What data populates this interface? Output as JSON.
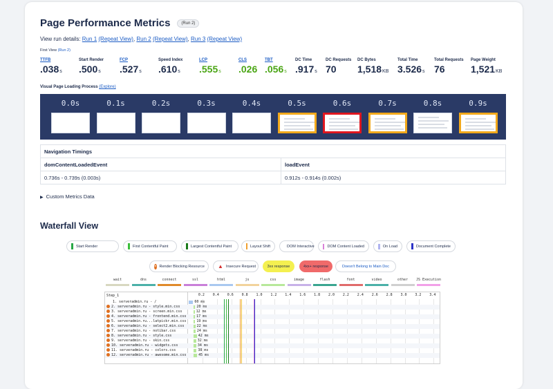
{
  "header": {
    "title": "Page Performance Metrics",
    "run_pill": "(Run 2)",
    "view_run_label": "View run details:",
    "runs": [
      {
        "label": "Run 1",
        "repeat": "(Repeat View)"
      },
      {
        "label": "Run 2",
        "repeat": "(Repeat View)"
      },
      {
        "label": "Run 3",
        "repeat": "(Repeat View)"
      }
    ],
    "first_view": "First View",
    "first_view_run": "(Run 2)"
  },
  "metrics": [
    {
      "label": "TTFB",
      "value": ".038",
      "unit": "s",
      "link": true,
      "green": false
    },
    {
      "label": "Start Render",
      "value": ".500",
      "unit": "s",
      "link": false,
      "green": false
    },
    {
      "label": "FCP",
      "value": ".527",
      "unit": "s",
      "link": true,
      "green": false
    },
    {
      "label": "Speed Index",
      "value": ".610",
      "unit": "s",
      "link": false,
      "green": false
    },
    {
      "label": "LCP",
      "value": ".555",
      "unit": "s",
      "link": true,
      "green": true
    },
    {
      "label": "CLS",
      "value": ".026",
      "unit": "",
      "link": true,
      "green": true
    },
    {
      "label": "TBT",
      "value": ".056",
      "unit": "s",
      "link": true,
      "green": true
    },
    {
      "label": "DC Time",
      "value": ".917",
      "unit": "s",
      "link": false,
      "green": false
    },
    {
      "label": "DC Requests",
      "value": "70",
      "unit": "",
      "link": false,
      "green": false
    },
    {
      "label": "DC Bytes",
      "value": "1,518",
      "unit": "KB",
      "link": false,
      "green": false
    },
    {
      "label": "Total Time",
      "value": "3.526",
      "unit": "s",
      "link": false,
      "green": false
    },
    {
      "label": "Total Requests",
      "value": "76",
      "unit": "",
      "link": false,
      "green": false
    },
    {
      "label": "Page Weight",
      "value": "1,521",
      "unit": "KB",
      "link": false,
      "green": false
    }
  ],
  "filmstrip": {
    "label": "Visual Page Loading Process",
    "explore": "(Explore)",
    "frames": [
      {
        "time": "0.0s",
        "state": "blank"
      },
      {
        "time": "0.1s",
        "state": "blank"
      },
      {
        "time": "0.2s",
        "state": "blank"
      },
      {
        "time": "0.3s",
        "state": "blank"
      },
      {
        "time": "0.4s",
        "state": "blank"
      },
      {
        "time": "0.5s",
        "state": "yellow"
      },
      {
        "time": "0.6s",
        "state": "red"
      },
      {
        "time": "0.7s",
        "state": "yellow"
      },
      {
        "time": "0.8s",
        "state": "plain"
      },
      {
        "time": "0.9s",
        "state": "yellow"
      }
    ]
  },
  "navigation": {
    "title": "Navigation Timings",
    "col1": "domContentLoadedEvent",
    "col2": "loadEvent",
    "val1": "0.736s - 0.739s (0.003s)",
    "val2": "0.912s - 0.914s (0.002s)"
  },
  "custom_metrics": "Custom Metrics Data",
  "waterfall": {
    "title": "Waterfall View",
    "legend_row1": [
      {
        "label": "Start Render",
        "color": "#28a745"
      },
      {
        "label": "First Contentful Paint",
        "color": "#3cbf3c"
      },
      {
        "label": "Largest Contentful Paint",
        "color": "#1a7a1a"
      },
      {
        "label": "Layout Shift",
        "color": "#f0a030"
      },
      {
        "label": "DOM Interactive",
        "color": "#f2c23a"
      },
      {
        "label": "DOM Content Loaded",
        "color": "#d982d9"
      },
      {
        "label": "On Load",
        "color": "#b0b4f0"
      },
      {
        "label": "Document Complete",
        "color": "#2b32c6"
      }
    ],
    "legend_row2": [
      {
        "label": "Render Blocking Resource"
      },
      {
        "label": "Insecure Request"
      },
      {
        "label": "3xx response"
      },
      {
        "label": "4xx+ response"
      },
      {
        "label": "Doesn't Belong to Main Doc"
      }
    ],
    "types": [
      {
        "label": "wait",
        "color": "#d8d8c0"
      },
      {
        "label": "dns",
        "color": "#4ab0a8"
      },
      {
        "label": "connect",
        "color": "#e08a2a"
      },
      {
        "label": "ssl",
        "color": "#c97fd9"
      },
      {
        "label": "html",
        "color": "#a9c8f0"
      },
      {
        "label": "js",
        "color": "#f2d39b"
      },
      {
        "label": "css",
        "color": "#b7e89a"
      },
      {
        "label": "image",
        "color": "#c7b1e8"
      },
      {
        "label": "flash",
        "color": "#3aa590"
      },
      {
        "label": "font",
        "color": "#e06a6a"
      },
      {
        "label": "video",
        "color": "#4ab0a8"
      },
      {
        "label": "other",
        "color": "#d0d0d0"
      },
      {
        "label": "JS Execution",
        "color": "#f2a0e8"
      }
    ],
    "step": "Step_1",
    "ticks": [
      "0.2",
      "0.4",
      "0.6",
      "0.8",
      "1.0",
      "1.2",
      "1.4",
      "1.6",
      "1.8",
      "2.0",
      "2.2",
      "2.4",
      "2.6",
      "2.8",
      "3.0",
      "3.2",
      "3.4"
    ],
    "requests": [
      {
        "name": "1. serveradmin.ru - /",
        "ms": "60 ms",
        "icon": false
      },
      {
        "name": "2. serveradmin.ru - style.min.css",
        "ms": "20 ms",
        "icon": true
      },
      {
        "name": "3. serveradmin.ru - screen.min.css",
        "ms": "12 ms",
        "icon": true
      },
      {
        "name": "4. serveradmin.ru - frontend.min.css",
        "ms": "17 ms",
        "icon": true
      },
      {
        "name": "5. serveradmin.ru...latpickr.min.css",
        "ms": "19 ms",
        "icon": true
      },
      {
        "name": "6. serveradmin.ru - select2.min.css",
        "ms": "22 ms",
        "icon": true
      },
      {
        "name": "7. serveradmin.ru - notibar.css",
        "ms": "24 ms",
        "icon": true
      },
      {
        "name": "8. serveradmin.ru - style.css",
        "ms": "42 ms",
        "icon": true
      },
      {
        "name": "9. serveradmin.ru - skin.css",
        "ms": "32 ms",
        "icon": true
      },
      {
        "name": "10. serveradmin.ru - widgets.css",
        "ms": "34 ms",
        "icon": true
      },
      {
        "name": "11. serveradmin.ru - colors.css",
        "ms": "38 ms",
        "icon": true
      },
      {
        "name": "12. serveradmin.ru - awesome.min.css",
        "ms": "45 ms",
        "icon": true
      }
    ]
  }
}
